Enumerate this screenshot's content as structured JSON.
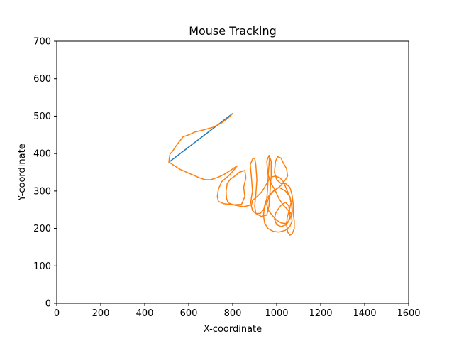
{
  "chart_data": {
    "type": "line",
    "title": "Mouse Tracking",
    "xlabel": "X-coordinate",
    "ylabel": "Y-coordinate",
    "xlim": [
      0,
      1600
    ],
    "ylim": [
      0,
      700
    ],
    "xticks": [
      0,
      200,
      400,
      600,
      800,
      1000,
      1200,
      1400,
      1600
    ],
    "yticks": [
      0,
      100,
      200,
      300,
      400,
      500,
      600,
      700
    ],
    "grid": false,
    "legend": "none",
    "series": [
      {
        "color": "#1f77b4",
        "points": [
          [
            510,
            377
          ],
          [
            800,
            507
          ]
        ]
      },
      {
        "color": "#ff7f0e",
        "points": [
          [
            800,
            507
          ],
          [
            780,
            495
          ],
          [
            750,
            482
          ],
          [
            710,
            470
          ],
          [
            690,
            467
          ],
          [
            660,
            462
          ],
          [
            630,
            458
          ],
          [
            600,
            450
          ],
          [
            575,
            445
          ],
          [
            555,
            430
          ],
          [
            540,
            418
          ],
          [
            525,
            405
          ],
          [
            515,
            399
          ],
          [
            512,
            388
          ],
          [
            510,
            377
          ],
          [
            560,
            358
          ],
          [
            610,
            345
          ],
          [
            650,
            335
          ],
          [
            675,
            330
          ],
          [
            700,
            330
          ],
          [
            730,
            336
          ],
          [
            760,
            344
          ],
          [
            790,
            355
          ],
          [
            820,
            367
          ],
          [
            800,
            352
          ],
          [
            780,
            340
          ],
          [
            750,
            325
          ],
          [
            735,
            305
          ],
          [
            730,
            285
          ],
          [
            735,
            272
          ],
          [
            760,
            266
          ],
          [
            800,
            263
          ],
          [
            840,
            264
          ],
          [
            855,
            285
          ],
          [
            850,
            310
          ],
          [
            860,
            335
          ],
          [
            855,
            355
          ],
          [
            830,
            350
          ],
          [
            810,
            340
          ],
          [
            790,
            332
          ],
          [
            775,
            320
          ],
          [
            770,
            300
          ],
          [
            772,
            280
          ],
          [
            780,
            268
          ],
          [
            810,
            262
          ],
          [
            850,
            258
          ],
          [
            880,
            262
          ],
          [
            890,
            300
          ],
          [
            885,
            340
          ],
          [
            880,
            370
          ],
          [
            890,
            385
          ],
          [
            900,
            388
          ],
          [
            905,
            370
          ],
          [
            910,
            330
          ],
          [
            905,
            290
          ],
          [
            900,
            260
          ],
          [
            905,
            240
          ],
          [
            930,
            232
          ],
          [
            955,
            236
          ],
          [
            965,
            260
          ],
          [
            970,
            300
          ],
          [
            975,
            340
          ],
          [
            975,
            380
          ],
          [
            965,
            395
          ],
          [
            955,
            380
          ],
          [
            960,
            345
          ],
          [
            975,
            320
          ],
          [
            995,
            300
          ],
          [
            1010,
            280
          ],
          [
            1030,
            262
          ],
          [
            1050,
            250
          ],
          [
            1065,
            240
          ],
          [
            1070,
            220
          ],
          [
            1060,
            205
          ],
          [
            1040,
            195
          ],
          [
            1010,
            190
          ],
          [
            985,
            192
          ],
          [
            960,
            200
          ],
          [
            945,
            215
          ],
          [
            940,
            235
          ],
          [
            945,
            260
          ],
          [
            955,
            280
          ],
          [
            975,
            295
          ],
          [
            1000,
            305
          ],
          [
            1020,
            315
          ],
          [
            1040,
            330
          ],
          [
            1050,
            340
          ],
          [
            1045,
            360
          ],
          [
            1030,
            375
          ],
          [
            1020,
            388
          ],
          [
            1005,
            392
          ],
          [
            995,
            380
          ],
          [
            990,
            350
          ],
          [
            1000,
            330
          ],
          [
            1020,
            320
          ],
          [
            1040,
            320
          ],
          [
            1060,
            310
          ],
          [
            1070,
            290
          ],
          [
            1075,
            265
          ],
          [
            1075,
            240
          ],
          [
            1080,
            220
          ],
          [
            1080,
            200
          ],
          [
            1070,
            185
          ],
          [
            1060,
            182
          ],
          [
            1050,
            190
          ],
          [
            1045,
            210
          ],
          [
            1048,
            230
          ],
          [
            1058,
            250
          ],
          [
            1065,
            268
          ],
          [
            1060,
            285
          ],
          [
            1040,
            300
          ],
          [
            1010,
            310
          ],
          [
            985,
            300
          ],
          [
            965,
            285
          ],
          [
            955,
            265
          ],
          [
            960,
            250
          ],
          [
            980,
            235
          ],
          [
            1000,
            222
          ],
          [
            1020,
            215
          ],
          [
            1040,
            213
          ],
          [
            1055,
            220
          ],
          [
            1060,
            240
          ],
          [
            1055,
            260
          ],
          [
            1040,
            270
          ],
          [
            1020,
            262
          ],
          [
            1005,
            250
          ],
          [
            995,
            240
          ],
          [
            990,
            225
          ],
          [
            1000,
            210
          ],
          [
            1020,
            205
          ],
          [
            1045,
            210
          ],
          [
            1060,
            225
          ],
          [
            1070,
            245
          ],
          [
            1068,
            265
          ],
          [
            1060,
            285
          ],
          [
            1045,
            305
          ],
          [
            1030,
            325
          ],
          [
            1015,
            335
          ],
          [
            995,
            340
          ],
          [
            980,
            338
          ],
          [
            965,
            330
          ],
          [
            950,
            315
          ],
          [
            935,
            300
          ],
          [
            920,
            290
          ],
          [
            905,
            282
          ],
          [
            890,
            275
          ],
          [
            885,
            260
          ],
          [
            890,
            248
          ],
          [
            905,
            240
          ],
          [
            925,
            240
          ],
          [
            940,
            250
          ],
          [
            950,
            265
          ],
          [
            955,
            280
          ],
          [
            958,
            300
          ],
          [
            960,
            320
          ],
          [
            962,
            345
          ],
          [
            965,
            370
          ],
          [
            968,
            395
          ]
        ]
      }
    ]
  }
}
